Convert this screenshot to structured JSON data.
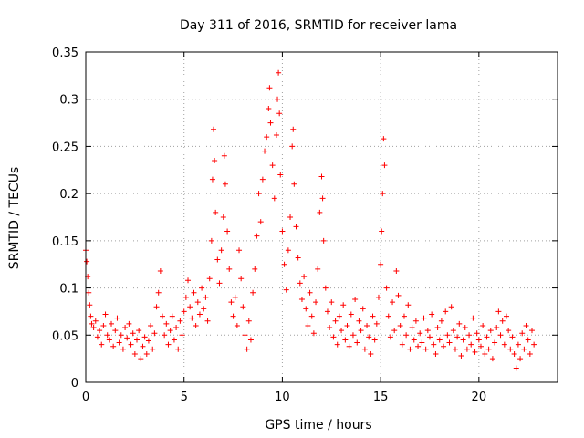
{
  "chart_data": {
    "type": "scatter",
    "title": "Day 311 of 2016, SRMTID for receiver lama",
    "xlabel": "GPS time / hours",
    "ylabel": "SRMTID / TECUs",
    "xlim": [
      0,
      24
    ],
    "ylim": [
      0,
      0.35
    ],
    "xticks": [
      0,
      5,
      10,
      15,
      20
    ],
    "xtick_labels": [
      "0",
      "5",
      "10",
      "15",
      "20"
    ],
    "yticks": [
      0,
      0.05,
      0.1,
      0.15,
      0.2,
      0.25,
      0.3,
      0.35
    ],
    "ytick_labels": [
      "0",
      "0.05",
      "0.1",
      "0.15",
      "0.2",
      "0.25",
      "0.3",
      "0.35"
    ],
    "grid": true,
    "marker": "+",
    "series": [
      {
        "name": "SRMTID",
        "color": "#ff0000",
        "points": [
          [
            0.0,
            0.14
          ],
          [
            0.05,
            0.128
          ],
          [
            0.1,
            0.112
          ],
          [
            0.15,
            0.095
          ],
          [
            0.2,
            0.082
          ],
          [
            0.25,
            0.07
          ],
          [
            0.3,
            0.062
          ],
          [
            0.4,
            0.058
          ],
          [
            0.5,
            0.065
          ],
          [
            0.6,
            0.048
          ],
          [
            0.7,
            0.055
          ],
          [
            0.8,
            0.04
          ],
          [
            0.9,
            0.06
          ],
          [
            1.0,
            0.072
          ],
          [
            1.1,
            0.05
          ],
          [
            1.2,
            0.045
          ],
          [
            1.3,
            0.062
          ],
          [
            1.4,
            0.038
          ],
          [
            1.5,
            0.055
          ],
          [
            1.6,
            0.068
          ],
          [
            1.7,
            0.042
          ],
          [
            1.8,
            0.05
          ],
          [
            1.9,
            0.035
          ],
          [
            2.0,
            0.058
          ],
          [
            2.1,
            0.047
          ],
          [
            2.2,
            0.062
          ],
          [
            2.3,
            0.04
          ],
          [
            2.4,
            0.052
          ],
          [
            2.5,
            0.03
          ],
          [
            2.6,
            0.045
          ],
          [
            2.7,
            0.055
          ],
          [
            2.8,
            0.025
          ],
          [
            2.9,
            0.038
          ],
          [
            3.0,
            0.048
          ],
          [
            3.1,
            0.03
          ],
          [
            3.2,
            0.044
          ],
          [
            3.3,
            0.06
          ],
          [
            3.4,
            0.035
          ],
          [
            3.5,
            0.052
          ],
          [
            3.6,
            0.08
          ],
          [
            3.7,
            0.095
          ],
          [
            3.8,
            0.118
          ],
          [
            3.9,
            0.07
          ],
          [
            4.0,
            0.05
          ],
          [
            4.1,
            0.062
          ],
          [
            4.2,
            0.04
          ],
          [
            4.3,
            0.055
          ],
          [
            4.4,
            0.07
          ],
          [
            4.5,
            0.045
          ],
          [
            4.6,
            0.058
          ],
          [
            4.7,
            0.035
          ],
          [
            4.8,
            0.065
          ],
          [
            4.9,
            0.05
          ],
          [
            5.0,
            0.075
          ],
          [
            5.1,
            0.09
          ],
          [
            5.2,
            0.108
          ],
          [
            5.3,
            0.08
          ],
          [
            5.4,
            0.068
          ],
          [
            5.5,
            0.095
          ],
          [
            5.6,
            0.06
          ],
          [
            5.7,
            0.085
          ],
          [
            5.8,
            0.072
          ],
          [
            5.9,
            0.1
          ],
          [
            6.0,
            0.078
          ],
          [
            6.1,
            0.09
          ],
          [
            6.2,
            0.065
          ],
          [
            6.3,
            0.11
          ],
          [
            6.4,
            0.15
          ],
          [
            6.45,
            0.215
          ],
          [
            6.5,
            0.268
          ],
          [
            6.55,
            0.235
          ],
          [
            6.6,
            0.18
          ],
          [
            6.7,
            0.13
          ],
          [
            6.8,
            0.105
          ],
          [
            6.9,
            0.14
          ],
          [
            7.0,
            0.175
          ],
          [
            7.05,
            0.24
          ],
          [
            7.1,
            0.21
          ],
          [
            7.2,
            0.16
          ],
          [
            7.3,
            0.12
          ],
          [
            7.4,
            0.085
          ],
          [
            7.5,
            0.07
          ],
          [
            7.6,
            0.09
          ],
          [
            7.7,
            0.06
          ],
          [
            7.8,
            0.14
          ],
          [
            7.9,
            0.11
          ],
          [
            8.0,
            0.08
          ],
          [
            8.1,
            0.05
          ],
          [
            8.2,
            0.035
          ],
          [
            8.3,
            0.065
          ],
          [
            8.4,
            0.045
          ],
          [
            8.5,
            0.095
          ],
          [
            8.6,
            0.12
          ],
          [
            8.7,
            0.155
          ],
          [
            8.8,
            0.2
          ],
          [
            8.9,
            0.17
          ],
          [
            9.0,
            0.215
          ],
          [
            9.1,
            0.245
          ],
          [
            9.2,
            0.26
          ],
          [
            9.3,
            0.29
          ],
          [
            9.35,
            0.312
          ],
          [
            9.4,
            0.275
          ],
          [
            9.5,
            0.23
          ],
          [
            9.6,
            0.195
          ],
          [
            9.7,
            0.262
          ],
          [
            9.75,
            0.3
          ],
          [
            9.8,
            0.328
          ],
          [
            9.85,
            0.285
          ],
          [
            9.9,
            0.22
          ],
          [
            10.0,
            0.16
          ],
          [
            10.1,
            0.125
          ],
          [
            10.2,
            0.098
          ],
          [
            10.3,
            0.14
          ],
          [
            10.4,
            0.175
          ],
          [
            10.5,
            0.25
          ],
          [
            10.55,
            0.268
          ],
          [
            10.6,
            0.21
          ],
          [
            10.7,
            0.165
          ],
          [
            10.8,
            0.132
          ],
          [
            10.9,
            0.105
          ],
          [
            11.0,
            0.088
          ],
          [
            11.1,
            0.112
          ],
          [
            11.2,
            0.078
          ],
          [
            11.3,
            0.06
          ],
          [
            11.4,
            0.095
          ],
          [
            11.5,
            0.07
          ],
          [
            11.6,
            0.052
          ],
          [
            11.7,
            0.085
          ],
          [
            11.8,
            0.12
          ],
          [
            11.9,
            0.18
          ],
          [
            12.0,
            0.218
          ],
          [
            12.05,
            0.195
          ],
          [
            12.1,
            0.15
          ],
          [
            12.2,
            0.1
          ],
          [
            12.3,
            0.075
          ],
          [
            12.4,
            0.058
          ],
          [
            12.5,
            0.085
          ],
          [
            12.6,
            0.048
          ],
          [
            12.7,
            0.065
          ],
          [
            12.8,
            0.04
          ],
          [
            12.9,
            0.07
          ],
          [
            13.0,
            0.055
          ],
          [
            13.1,
            0.082
          ],
          [
            13.2,
            0.045
          ],
          [
            13.3,
            0.06
          ],
          [
            13.4,
            0.038
          ],
          [
            13.5,
            0.072
          ],
          [
            13.6,
            0.05
          ],
          [
            13.7,
            0.088
          ],
          [
            13.8,
            0.042
          ],
          [
            13.9,
            0.065
          ],
          [
            14.0,
            0.055
          ],
          [
            14.1,
            0.078
          ],
          [
            14.2,
            0.035
          ],
          [
            14.3,
            0.06
          ],
          [
            14.4,
            0.048
          ],
          [
            14.5,
            0.03
          ],
          [
            14.6,
            0.07
          ],
          [
            14.7,
            0.045
          ],
          [
            14.8,
            0.062
          ],
          [
            14.9,
            0.09
          ],
          [
            15.0,
            0.125
          ],
          [
            15.05,
            0.16
          ],
          [
            15.1,
            0.2
          ],
          [
            15.15,
            0.258
          ],
          [
            15.2,
            0.23
          ],
          [
            15.3,
            0.1
          ],
          [
            15.4,
            0.07
          ],
          [
            15.5,
            0.048
          ],
          [
            15.6,
            0.085
          ],
          [
            15.7,
            0.055
          ],
          [
            15.8,
            0.118
          ],
          [
            15.9,
            0.092
          ],
          [
            16.0,
            0.06
          ],
          [
            16.1,
            0.04
          ],
          [
            16.2,
            0.07
          ],
          [
            16.3,
            0.05
          ],
          [
            16.4,
            0.082
          ],
          [
            16.5,
            0.035
          ],
          [
            16.6,
            0.058
          ],
          [
            16.7,
            0.045
          ],
          [
            16.8,
            0.065
          ],
          [
            16.9,
            0.038
          ],
          [
            17.0,
            0.052
          ],
          [
            17.1,
            0.042
          ],
          [
            17.2,
            0.068
          ],
          [
            17.3,
            0.035
          ],
          [
            17.4,
            0.055
          ],
          [
            17.5,
            0.048
          ],
          [
            17.6,
            0.072
          ],
          [
            17.7,
            0.04
          ],
          [
            17.8,
            0.03
          ],
          [
            17.9,
            0.058
          ],
          [
            18.0,
            0.045
          ],
          [
            18.1,
            0.065
          ],
          [
            18.2,
            0.038
          ],
          [
            18.3,
            0.075
          ],
          [
            18.4,
            0.05
          ],
          [
            18.5,
            0.042
          ],
          [
            18.6,
            0.08
          ],
          [
            18.7,
            0.055
          ],
          [
            18.8,
            0.035
          ],
          [
            18.9,
            0.048
          ],
          [
            19.0,
            0.062
          ],
          [
            19.1,
            0.028
          ],
          [
            19.2,
            0.045
          ],
          [
            19.3,
            0.058
          ],
          [
            19.4,
            0.035
          ],
          [
            19.5,
            0.05
          ],
          [
            19.6,
            0.04
          ],
          [
            19.7,
            0.068
          ],
          [
            19.8,
            0.032
          ],
          [
            19.9,
            0.052
          ],
          [
            20.0,
            0.045
          ],
          [
            20.1,
            0.038
          ],
          [
            20.2,
            0.06
          ],
          [
            20.3,
            0.03
          ],
          [
            20.4,
            0.048
          ],
          [
            20.5,
            0.035
          ],
          [
            20.6,
            0.055
          ],
          [
            20.7,
            0.025
          ],
          [
            20.8,
            0.042
          ],
          [
            20.9,
            0.058
          ],
          [
            21.0,
            0.075
          ],
          [
            21.1,
            0.05
          ],
          [
            21.2,
            0.065
          ],
          [
            21.3,
            0.04
          ],
          [
            21.4,
            0.07
          ],
          [
            21.5,
            0.055
          ],
          [
            21.6,
            0.035
          ],
          [
            21.7,
            0.048
          ],
          [
            21.8,
            0.03
          ],
          [
            21.9,
            0.015
          ],
          [
            22.0,
            0.04
          ],
          [
            22.1,
            0.025
          ],
          [
            22.2,
            0.052
          ],
          [
            22.3,
            0.035
          ],
          [
            22.4,
            0.06
          ],
          [
            22.5,
            0.045
          ],
          [
            22.6,
            0.03
          ],
          [
            22.7,
            0.055
          ],
          [
            22.8,
            0.04
          ]
        ]
      }
    ]
  }
}
